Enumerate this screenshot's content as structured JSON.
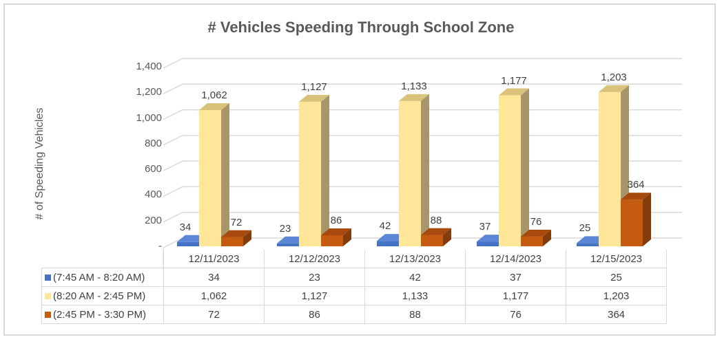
{
  "chart_data": {
    "type": "bar",
    "subtype": "3d-clustered-column-with-data-table",
    "title": "# Vehicles Speeding Through School Zone",
    "xlabel": "",
    "ylabel": "# of Speeding Vehicles",
    "ylim": [
      0,
      1400
    ],
    "yticks": [
      "-",
      "200",
      "400",
      "600",
      "800",
      "1,000",
      "1,200",
      "1,400"
    ],
    "grid": true,
    "legend_position": "data-table",
    "categories": [
      "12/11/2023",
      "12/12/2023",
      "12/13/2023",
      "12/14/2023",
      "12/15/2023"
    ],
    "series": [
      {
        "name": "(7:45 AM - 8:20 AM)",
        "color": "#4472c4",
        "values": [
          34,
          23,
          42,
          37,
          25
        ],
        "labels": [
          "34",
          "23",
          "42",
          "37",
          "25"
        ]
      },
      {
        "name": "(8:20 AM - 2:45 PM)",
        "color": "#ffe699",
        "values": [
          1062,
          1127,
          1133,
          1177,
          1203
        ],
        "labels": [
          "1,062",
          "1,127",
          "1,133",
          "1,177",
          "1,203"
        ]
      },
      {
        "name": "(2:45 PM - 3:30 PM)",
        "color": "#c55a11",
        "values": [
          72,
          86,
          88,
          76,
          364
        ],
        "labels": [
          "72",
          "86",
          "88",
          "76",
          "364"
        ]
      }
    ]
  }
}
